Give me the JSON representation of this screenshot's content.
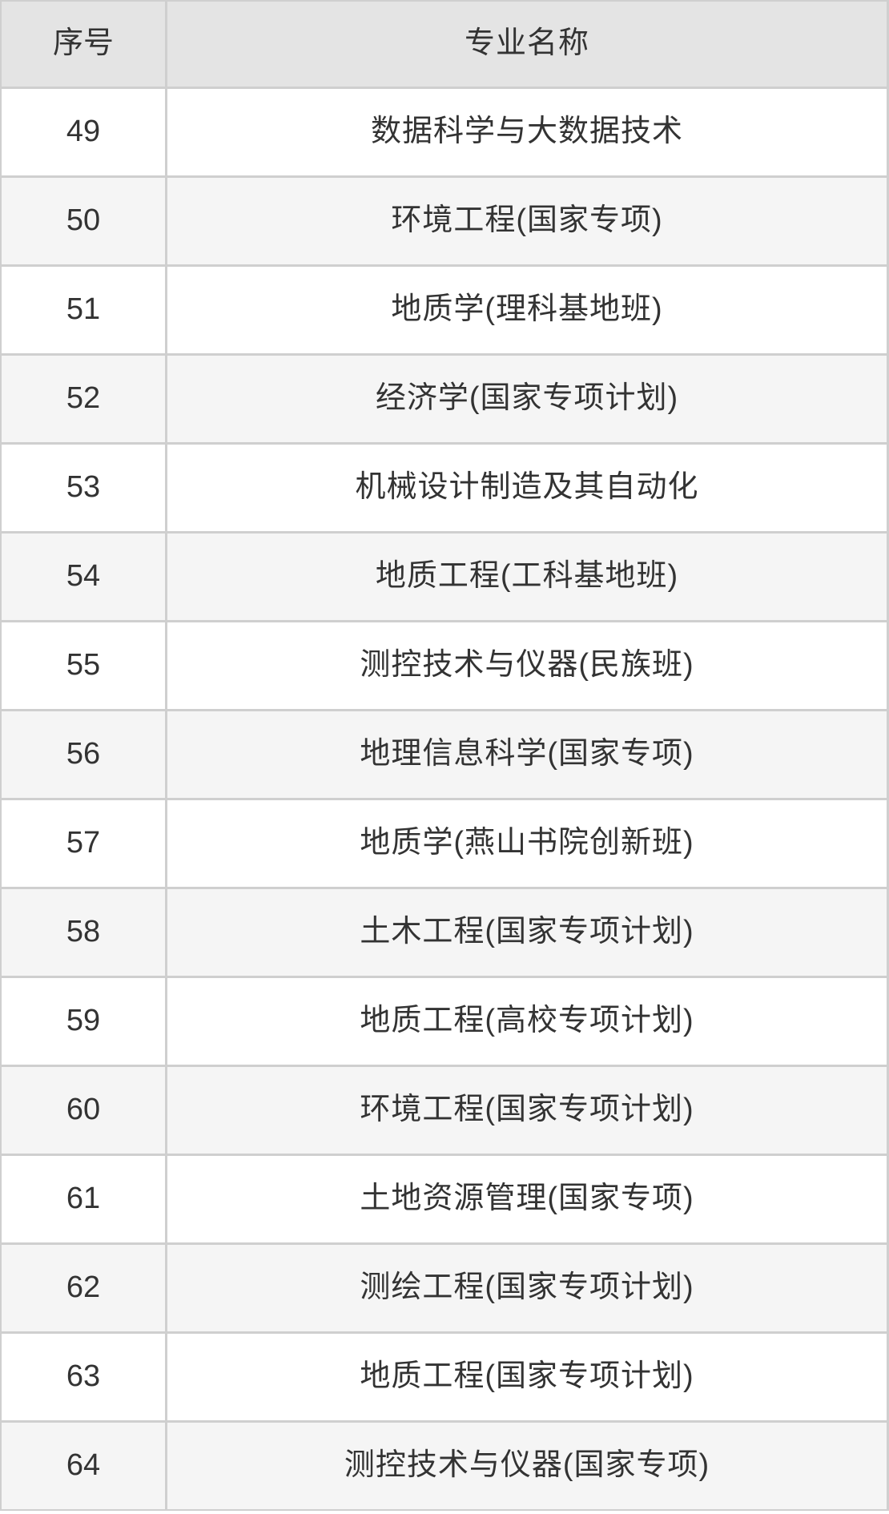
{
  "chart_data": {
    "type": "table",
    "columns": [
      "序号",
      "专业名称"
    ],
    "rows": [
      {
        "index": "49",
        "major": "数据科学与大数据技术"
      },
      {
        "index": "50",
        "major": "环境工程(国家专项)"
      },
      {
        "index": "51",
        "major": "地质学(理科基地班)"
      },
      {
        "index": "52",
        "major": "经济学(国家专项计划)"
      },
      {
        "index": "53",
        "major": "机械设计制造及其自动化"
      },
      {
        "index": "54",
        "major": "地质工程(工科基地班)"
      },
      {
        "index": "55",
        "major": "测控技术与仪器(民族班)"
      },
      {
        "index": "56",
        "major": "地理信息科学(国家专项)"
      },
      {
        "index": "57",
        "major": "地质学(燕山书院创新班)"
      },
      {
        "index": "58",
        "major": "土木工程(国家专项计划)"
      },
      {
        "index": "59",
        "major": "地质工程(高校专项计划)"
      },
      {
        "index": "60",
        "major": "环境工程(国家专项计划)"
      },
      {
        "index": "61",
        "major": "土地资源管理(国家专项)"
      },
      {
        "index": "62",
        "major": "测绘工程(国家专项计划)"
      },
      {
        "index": "63",
        "major": "地质工程(国家专项计划)"
      },
      {
        "index": "64",
        "major": "测控技术与仪器(国家专项)"
      }
    ],
    "layout": {
      "grid": true,
      "header_row": true,
      "zebra_striping": true
    }
  },
  "colors": {
    "header_bg": "#e4e4e4",
    "row_bg": "#ffffff",
    "row_alt_bg": "#f5f5f5",
    "grid_line": "#cfcfcf",
    "text": "#333333"
  }
}
